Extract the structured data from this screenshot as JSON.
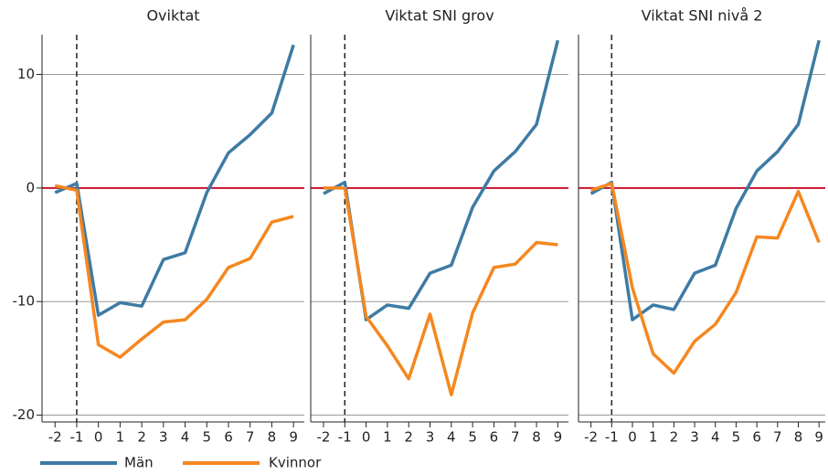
{
  "chart_data": [
    {
      "type": "line",
      "title": "Oviktat",
      "x": [
        -2,
        -1,
        0,
        1,
        2,
        3,
        4,
        5,
        6,
        7,
        8,
        9
      ],
      "series": [
        {
          "name": "Män",
          "color": "#3d7ba3",
          "values": [
            -0.4,
            0.4,
            -11.2,
            -10.1,
            -10.4,
            -6.3,
            -5.7,
            -0.4,
            3.1,
            4.7,
            6.6,
            12.6
          ]
        },
        {
          "name": "Kvinnor",
          "color": "#f5871f",
          "values": [
            0.2,
            -0.2,
            -13.8,
            -14.9,
            -13.3,
            -11.8,
            -11.6,
            -9.8,
            -7.0,
            -6.2,
            -3.0,
            -2.5
          ]
        }
      ],
      "xlim": [
        -2.6,
        9.5
      ],
      "ylim": [
        -20.6,
        13.5
      ],
      "xticks": [
        -2,
        -1,
        0,
        1,
        2,
        3,
        4,
        5,
        6,
        7,
        8,
        9
      ],
      "yticks": [
        10,
        0,
        -10,
        -20
      ],
      "grid": true,
      "hline": 0,
      "hline_color": "#c8102e",
      "vline": -1
    },
    {
      "type": "line",
      "title": "Viktat SNI grov",
      "x": [
        -2,
        -1,
        0,
        1,
        2,
        3,
        4,
        5,
        6,
        7,
        8,
        9
      ],
      "series": [
        {
          "color": "#3d7ba3",
          "values": [
            -0.5,
            0.5,
            -11.6,
            -10.3,
            -10.6,
            -7.5,
            -6.8,
            -1.7,
            1.5,
            3.2,
            5.6,
            13.0
          ]
        },
        {
          "color": "#f5871f",
          "values": [
            0,
            0,
            -11.3,
            -13.9,
            -16.8,
            -11.1,
            -18.2,
            -11.0,
            -7.0,
            -6.7,
            -4.8,
            -5.0
          ]
        }
      ],
      "xlim": [
        -2.6,
        9.5
      ],
      "ylim": [
        -20.6,
        13.5
      ],
      "xticks": [
        -2,
        -1,
        0,
        1,
        2,
        3,
        4,
        5,
        6,
        7,
        8,
        9
      ],
      "yticks": [
        10,
        0,
        -10,
        -20
      ],
      "grid": true,
      "hline": 0,
      "hline_color": "#c8102e",
      "vline": -1
    },
    {
      "type": "line",
      "title": "Viktat SNI nivå 2",
      "x": [
        -2,
        -1,
        0,
        1,
        2,
        3,
        4,
        5,
        6,
        7,
        8,
        9
      ],
      "series": [
        {
          "color": "#3d7ba3",
          "values": [
            -0.5,
            0.5,
            -11.6,
            -10.3,
            -10.7,
            -7.5,
            -6.8,
            -1.8,
            1.5,
            3.2,
            5.6,
            13.0
          ]
        },
        {
          "color": "#f5871f",
          "values": [
            -0.2,
            0.4,
            -8.8,
            -14.6,
            -16.3,
            -13.5,
            -12.0,
            -9.2,
            -4.3,
            -4.4,
            -0.3,
            -4.8
          ]
        }
      ],
      "xlim": [
        -2.6,
        9.3
      ],
      "ylim": [
        -20.6,
        13.5
      ],
      "xticks": [
        -2,
        -1,
        0,
        1,
        2,
        3,
        4,
        5,
        6,
        7,
        8,
        9
      ],
      "yticks": [
        10,
        0,
        -10,
        -20
      ],
      "grid": true,
      "hline": 0,
      "hline_color": "#c8102e",
      "vline": -1
    }
  ]
}
